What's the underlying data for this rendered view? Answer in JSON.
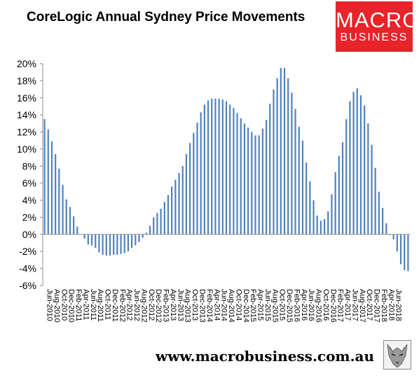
{
  "header": {
    "title": "CoreLogic Annual Sydney Price Movements",
    "logo_line1": "MACRO",
    "logo_line2": "BUSINESS"
  },
  "footer": {
    "url": "www.macrobusiness.com.au"
  },
  "colors": {
    "bar": "#4f81bd",
    "logo_bg": "#e8232a",
    "axis": "#8c8c8c"
  },
  "chart_data": {
    "type": "bar",
    "title": "CoreLogic Annual Sydney Price Movements",
    "xlabel": "",
    "ylabel": "",
    "ylim": [
      -6,
      20
    ],
    "yticks": [
      "20%",
      "18%",
      "16%",
      "14%",
      "12%",
      "10%",
      "8%",
      "6%",
      "4%",
      "2%",
      "0%",
      "-2%",
      "-4%",
      "-6%"
    ],
    "ytick_values": [
      20,
      18,
      16,
      14,
      12,
      10,
      8,
      6,
      4,
      2,
      0,
      -2,
      -4,
      -6
    ],
    "grid": false,
    "legend": "none",
    "x_tick_labels": [
      "Jun-2010",
      "Aug-2010",
      "Oct-2010",
      "Dec-2010",
      "Feb-2011",
      "Apr-2011",
      "Jun-2011",
      "Aug-2011",
      "Oct-2011",
      "Dec-2011",
      "Feb-2012",
      "Apr-2012",
      "Jun-2012",
      "Aug-2012",
      "Oct-2012",
      "Dec-2012",
      "Feb-2013",
      "Apr-2013",
      "Jun-2013",
      "Aug-2013",
      "Oct-2013",
      "Dec-2013",
      "Feb-2014",
      "Apr-2014",
      "Jun-2014",
      "Aug-2014",
      "Oct-2014",
      "Dec-2014",
      "Feb-2015",
      "Apr-2015",
      "Jun-2015",
      "Aug-2015",
      "Oct-2015",
      "Dec-2015",
      "Feb-2016",
      "Apr-2016",
      "Jun-2016",
      "Aug-2016",
      "Oct-2016",
      "Dec-2016",
      "Feb-2017",
      "Apr-2017",
      "Jun-2017",
      "Aug-2017",
      "Oct-2017",
      "Dec-2017",
      "Feb-2018",
      "Apr-2018",
      "Jun-2018"
    ],
    "series": [
      {
        "values": [
          13.5,
          12.3,
          10.9,
          9.4,
          7.7,
          5.8,
          4.1,
          3.2,
          2.1,
          0.9,
          0.0,
          -0.5,
          -1.2,
          -1.3,
          -1.6,
          -2.1,
          -2.4,
          -2.5,
          -2.5,
          -2.4,
          -2.4,
          -2.3,
          -2.2,
          -2.0,
          -1.6,
          -1.3,
          -0.9,
          -0.4,
          0.2,
          1.0,
          2.0,
          2.5,
          3.0,
          3.8,
          4.6,
          5.6,
          6.4,
          7.2,
          8.0,
          9.4,
          10.7,
          11.9,
          13.1,
          14.3,
          15.2,
          15.7,
          15.9,
          15.9,
          15.9,
          15.8,
          15.6,
          15.2,
          14.8,
          14.2,
          13.6,
          13.0,
          12.5,
          12.0,
          11.6,
          11.6,
          12.4,
          13.4,
          15.3,
          17.0,
          18.3,
          19.5,
          19.5,
          18.3,
          16.6,
          14.7,
          12.6,
          11.0,
          8.4,
          6.2,
          4.0,
          2.2,
          1.6,
          1.8,
          2.7,
          4.7,
          7.3,
          9.2,
          10.8,
          13.5,
          15.6,
          16.7,
          17.1,
          16.3,
          15.1,
          13.0,
          10.5,
          7.8,
          5.0,
          3.1,
          1.3,
          -0.1,
          -0.6,
          -2.0,
          -3.5,
          -4.2,
          -4.3
        ]
      }
    ]
  }
}
